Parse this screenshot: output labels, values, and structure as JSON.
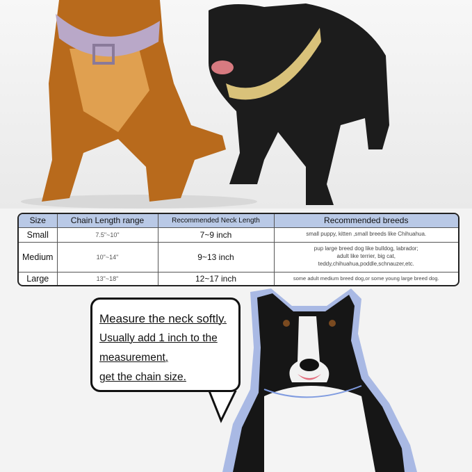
{
  "table": {
    "headers": [
      "Size",
      "Chain Length range",
      "Recommended Neck Length",
      "Recommended breeds"
    ],
    "rows": [
      {
        "size": "Small",
        "chain": "7.5\"~10\"",
        "neck": "7~9 inch",
        "breeds": [
          "small puppy, kitten ,small breeds like Chihuahua."
        ]
      },
      {
        "size": "Medium",
        "chain": "10\"~14\"",
        "neck": "9~13 inch",
        "breeds": [
          "pup large breed dog like bulldog, labrador;",
          "adult like terrier,  big cat,",
          "teddy,chihuahua,poddle,schnauzer,etc."
        ]
      },
      {
        "size": "Large",
        "chain": "13\"~18\"",
        "neck": "12~17 inch",
        "breeds": [
          "some adult medium breed dog,or some young large breed dog."
        ]
      }
    ],
    "header_color": "#b9c9e6"
  },
  "bubble": {
    "lines": [
      "Measure the neck softly.",
      "Usually add 1 inch to the",
      "measurement,",
      "get the chain size."
    ]
  }
}
